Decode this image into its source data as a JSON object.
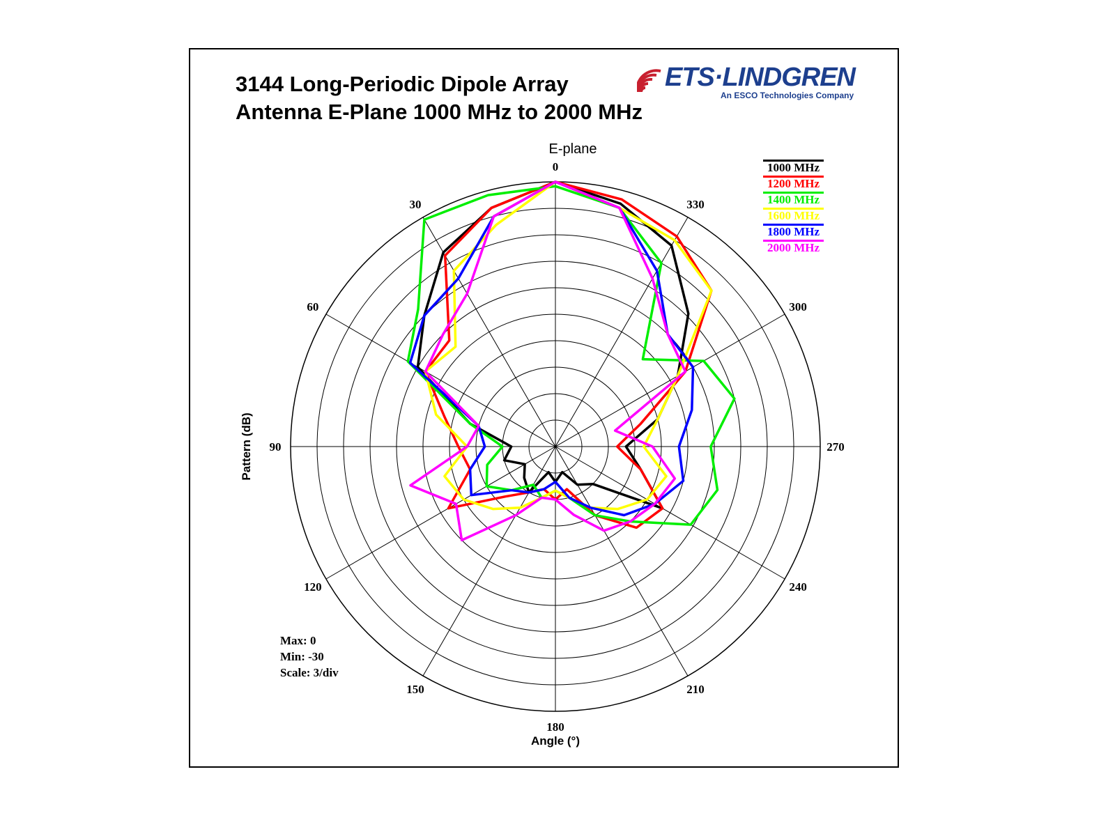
{
  "header": {
    "title_line1": "3144 Long-Periodic Dipole Array",
    "title_line2": "Antenna E-Plane 1000 MHz to 2000 MHz",
    "logo_text": "ETS·LINDGREN",
    "logo_sub": "An ESCO Technologies Company"
  },
  "chart_data": {
    "type": "polar-line",
    "title": "E-plane",
    "xlabel": "Angle  (°)",
    "ylabel": "Pattern  (dB)",
    "r_range": [
      -30,
      0
    ],
    "r_step": 3,
    "angle_direction": "counterclockwise, 0 at top",
    "angle_ticks": [
      0,
      30,
      60,
      90,
      120,
      150,
      180,
      210,
      240,
      270,
      300,
      330
    ],
    "legend_position": "top-right",
    "angles": [
      0,
      15,
      30,
      45,
      60,
      75,
      90,
      105,
      120,
      135,
      150,
      165,
      180,
      195,
      210,
      225,
      240,
      255,
      270,
      285,
      300,
      315,
      330,
      345
    ],
    "series": [
      {
        "name": "1000 MHz",
        "color": "#000000",
        "values": [
          0,
          -2,
          -4.6,
          -9,
          -12,
          -20,
          -25,
          -24,
          -26,
          -25,
          -24,
          -27,
          -26,
          -27,
          -25,
          -24,
          -16,
          -20,
          -22,
          -18,
          -14,
          -8.7,
          -3.7,
          -1.5
        ]
      },
      {
        "name": "1200 MHz",
        "color": "#ff0000",
        "values": [
          0,
          -2,
          -5,
          -13,
          -13,
          -17,
          -19,
          -20,
          -16,
          -22,
          -24,
          -25,
          -24,
          -25,
          -21,
          -17,
          -16,
          -20,
          -23,
          -20,
          -13,
          -5,
          -2.5,
          -1
        ]
      },
      {
        "name": "1400 MHz",
        "color": "#00ee00",
        "values": [
          -0.5,
          -0.5,
          -0.3,
          -8,
          -10.7,
          -20,
          -24,
          -22,
          -21,
          -23,
          -25,
          -24,
          -25,
          -24,
          -21,
          -18,
          -12.3,
          -11,
          -12.4,
          -9,
          -10.6,
          -16,
          -6,
          -2
        ]
      },
      {
        "name": "1600 MHz",
        "color": "#ffff00",
        "values": [
          0,
          -4,
          -7,
          -14,
          -13,
          -16,
          -20,
          -17,
          -18,
          -20,
          -22,
          -24,
          -25,
          -24,
          -22,
          -20,
          -18,
          -17,
          -20,
          -18,
          -14,
          -5,
          -3,
          -2
        ]
      },
      {
        "name": "1800 MHz",
        "color": "#0000ff",
        "values": [
          0,
          -3,
          -8,
          -9,
          -11,
          -21,
          -22,
          -20,
          -19,
          -23,
          -24,
          -25,
          -26,
          -24,
          -22,
          -19,
          -17,
          -15,
          -16,
          -14,
          -12,
          -12,
          -7,
          -2
        ]
      },
      {
        "name": "2000 MHz",
        "color": "#ff00ff",
        "values": [
          0,
          -3,
          -10,
          -12,
          -13,
          -21,
          -20,
          -13,
          -17,
          -15,
          -21,
          -24,
          -24,
          -22,
          -19,
          -18,
          -17,
          -16,
          -19,
          -23,
          -13,
          -12,
          -8,
          -2
        ]
      }
    ]
  },
  "info": {
    "max": "Max: 0",
    "min": "Min: -30",
    "scale": "Scale: 3/div"
  }
}
